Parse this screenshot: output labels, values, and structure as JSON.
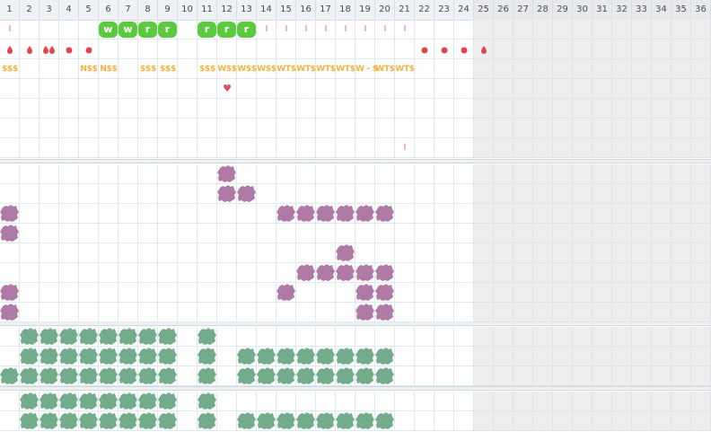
{
  "columns": [
    "1",
    "2",
    "3",
    "4",
    "5",
    "6",
    "7",
    "8",
    "9",
    "10",
    "11",
    "12",
    "13",
    "14",
    "15",
    "16",
    "17",
    "18",
    "19",
    "20",
    "21",
    "22",
    "23",
    "24",
    "25",
    "26",
    "27",
    "28",
    "29",
    "30",
    "31",
    "32",
    "33",
    "34",
    "35",
    "36"
  ],
  "active_columns": 24,
  "colors": {
    "green_badge": "#5cc93f",
    "tick_red": "#e0727a",
    "drop_red": "#e2474f",
    "dollar_gold": "#f0b33c",
    "heart": "#e04a5f",
    "purple_blob": "#b07aa6",
    "green_blob": "#73ac8a",
    "grid_line": "#dde8f0",
    "inactive_bg": "#eeeeef"
  },
  "top_section": {
    "row1_ticks": [
      1,
      14,
      15,
      16,
      17,
      18,
      19,
      20,
      21
    ],
    "row1_badges": [
      {
        "col": 6,
        "label": "w"
      },
      {
        "col": 7,
        "label": "w"
      },
      {
        "col": 8,
        "label": "r"
      },
      {
        "col": 9,
        "label": "r"
      },
      {
        "col": 11,
        "label": "r"
      },
      {
        "col": 12,
        "label": "r"
      },
      {
        "col": 13,
        "label": "r"
      }
    ],
    "row2_marks": [
      {
        "col": 1,
        "kind": "drop1"
      },
      {
        "col": 2,
        "kind": "drop1"
      },
      {
        "col": 3,
        "kind": "drop2"
      },
      {
        "col": 4,
        "kind": "dot"
      },
      {
        "col": 5,
        "kind": "dot"
      },
      {
        "col": 22,
        "kind": "dot"
      },
      {
        "col": 23,
        "kind": "dot"
      },
      {
        "col": 24,
        "kind": "dot"
      },
      {
        "col": 25,
        "kind": "drop1"
      }
    ],
    "row3_labels": [
      {
        "col": 1,
        "text": "$$$"
      },
      {
        "col": 5,
        "text": "N$$"
      },
      {
        "col": 6,
        "text": "N$$"
      },
      {
        "col": 8,
        "text": "$$$"
      },
      {
        "col": 9,
        "text": "$$$"
      },
      {
        "col": 11,
        "text": "$$$"
      },
      {
        "col": 12,
        "text": "W$$"
      },
      {
        "col": 13,
        "text": "W$$"
      },
      {
        "col": 14,
        "text": "W$$"
      },
      {
        "col": 15,
        "text": "WT$"
      },
      {
        "col": 16,
        "text": "WT$"
      },
      {
        "col": 17,
        "text": "WT$"
      },
      {
        "col": 18,
        "text": "WT$"
      },
      {
        "col": 19,
        "text": "W - $"
      },
      {
        "col": 20,
        "text": "WT$"
      },
      {
        "col": 21,
        "text": "WT$"
      }
    ],
    "row4_heart_col": 12,
    "row4_heart": "♥",
    "row7_tick_col": 21,
    "tick_glyph": "I"
  },
  "purple_section": {
    "rows": [
      [
        12
      ],
      [
        12,
        13
      ],
      [
        1,
        15,
        16,
        17,
        18,
        19,
        20
      ],
      [
        1
      ],
      [
        18
      ],
      [
        16,
        17,
        18,
        19,
        20
      ],
      [
        1,
        15,
        19,
        20
      ],
      [
        1,
        19,
        20
      ]
    ]
  },
  "green_section_1": {
    "rows": [
      [
        2,
        3,
        4,
        5,
        6,
        7,
        8,
        9,
        11
      ],
      [
        2,
        3,
        4,
        5,
        6,
        7,
        8,
        9,
        11,
        13,
        14,
        15,
        16,
        17,
        18,
        19,
        20
      ],
      [
        1,
        2,
        3,
        4,
        5,
        6,
        7,
        8,
        9,
        11,
        13,
        14,
        15,
        16,
        17,
        18,
        19,
        20
      ]
    ]
  },
  "green_section_2": {
    "rows": [
      [
        2,
        3,
        4,
        5,
        6,
        7,
        8,
        9,
        11
      ],
      [
        2,
        3,
        4,
        5,
        6,
        7,
        8,
        9,
        11,
        13,
        14,
        15,
        16,
        17,
        18,
        19,
        20
      ]
    ]
  }
}
